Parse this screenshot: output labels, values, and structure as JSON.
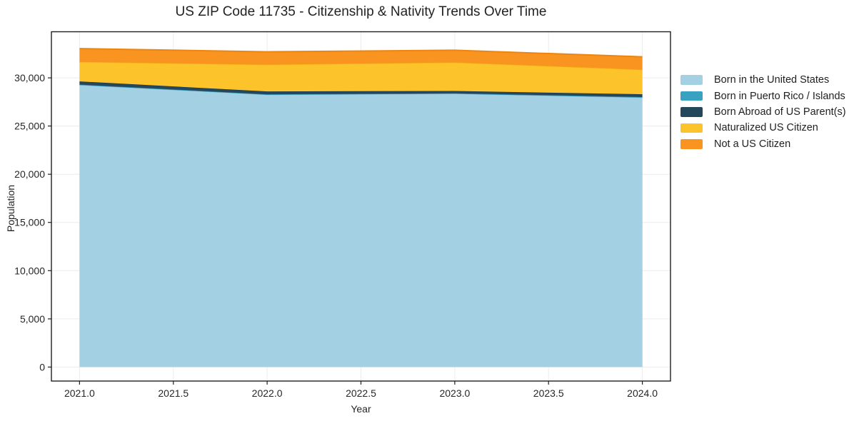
{
  "figure": {
    "title": "US ZIP Code 11735 - Citizenship & Nativity Trends Over Time",
    "xlabel": "Year",
    "ylabel": "Population"
  },
  "chart_data": {
    "type": "area",
    "stacked": true,
    "title": "US ZIP Code 11735 - Citizenship & Nativity Trends Over Time",
    "xlabel": "Year",
    "ylabel": "Population",
    "x": [
      2021,
      2022,
      2023,
      2024
    ],
    "series": [
      {
        "name": "Born in the United States",
        "color": "#a4d0e4",
        "edge": "#8fc2da",
        "values": [
          29250,
          28250,
          28350,
          27950
        ]
      },
      {
        "name": "Born in Puerto Rico / Islands",
        "color": "#38a2c0",
        "edge": "#2b8fae",
        "values": [
          50,
          40,
          40,
          60
        ]
      },
      {
        "name": "Born Abroad of US Parent(s)",
        "color": "#25475c",
        "edge": "#1d3a4d",
        "values": [
          330,
          300,
          250,
          290
        ]
      },
      {
        "name": "Naturalized US Citizen",
        "color": "#fdc32b",
        "edge": "#f2b110",
        "values": [
          2030,
          2780,
          2960,
          2550
        ]
      },
      {
        "name": "Not a US Citizen",
        "color": "#f8941f",
        "edge": "#ec8512",
        "values": [
          1370,
          1330,
          1260,
          1330
        ]
      }
    ],
    "xticks": [
      2021.0,
      2021.5,
      2022.0,
      2022.5,
      2023.0,
      2023.5,
      2024.0
    ],
    "yticks": [
      0,
      5000,
      10000,
      15000,
      20000,
      25000,
      30000
    ],
    "xtick_labels": [
      "2021.0",
      "2021.5",
      "2022.0",
      "2022.5",
      "2023.0",
      "2023.5",
      "2024.0"
    ],
    "ytick_labels": [
      "0",
      "5,000",
      "10,000",
      "15,000",
      "20,000",
      "25,000",
      "30,000"
    ],
    "xlim": [
      2020.85,
      2024.15
    ],
    "ylim": [
      -1450,
      34780
    ],
    "grid": true,
    "legend_position": "outside-right"
  },
  "colors": {
    "background": "#ffffff",
    "grid": "#ececec",
    "spine": "#1f1f1f",
    "tick_text": "#262626"
  }
}
